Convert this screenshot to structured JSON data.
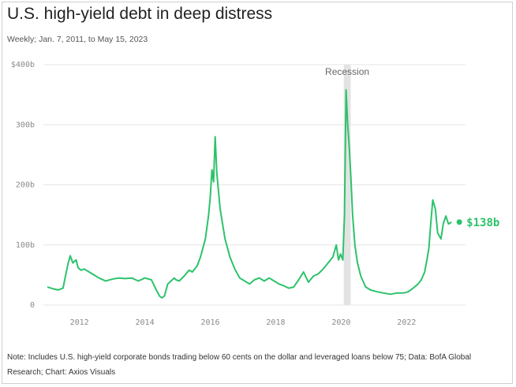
{
  "header": {
    "title": "U.S. high-yield debt in deep distress",
    "subtitle": "Weekly; Jan. 7, 2011, to May 15, 2023"
  },
  "footer": {
    "note": "Note: Includes U.S. high-yield corporate bonds trading below 60 cents on the dollar and leveraged loans below 75; Data: BofA Global Research; Chart: Axios Visuals"
  },
  "colors": {
    "line": "#2dc26b",
    "recession_band": "#e3e3e3",
    "grid": "#e6e6e6"
  },
  "chart_data": {
    "type": "line",
    "title": "U.S. high-yield debt in deep distress",
    "subtitle": "Weekly; Jan. 7, 2011, to May 15, 2023",
    "xlabel": "",
    "ylabel": "",
    "xlim": [
      2010.9,
      2023.8
    ],
    "ylim": [
      0,
      400
    ],
    "y_ticks": [
      0,
      100,
      200,
      300,
      400
    ],
    "y_tick_labels": [
      "0",
      "100b",
      "200b",
      "300b",
      "$400b"
    ],
    "x_ticks": [
      2012,
      2014,
      2016,
      2018,
      2020,
      2022
    ],
    "x_tick_labels": [
      "2012",
      "2014",
      "2016",
      "2018",
      "2020",
      "2022"
    ],
    "grid": "horizontal",
    "recession": {
      "label": "Recession",
      "start": 2020.08,
      "end": 2020.29
    },
    "end_label": "$138b",
    "series": [
      {
        "units": "billions of dollars",
        "x": [
          2011.02,
          2011.2,
          2011.35,
          2011.5,
          2011.65,
          2011.72,
          2011.8,
          2011.9,
          2011.96,
          2012.05,
          2012.15,
          2012.3,
          2012.45,
          2012.6,
          2012.8,
          2013.0,
          2013.2,
          2013.4,
          2013.6,
          2013.8,
          2014.0,
          2014.2,
          2014.35,
          2014.45,
          2014.52,
          2014.6,
          2014.7,
          2014.8,
          2014.9,
          2014.95,
          2015.05,
          2015.2,
          2015.35,
          2015.45,
          2015.6,
          2015.7,
          2015.85,
          2015.95,
          2016.0,
          2016.05,
          2016.1,
          2016.15,
          2016.2,
          2016.3,
          2016.45,
          2016.6,
          2016.75,
          2016.9,
          2017.05,
          2017.2,
          2017.35,
          2017.5,
          2017.65,
          2017.8,
          2017.95,
          2018.1,
          2018.25,
          2018.4,
          2018.55,
          2018.7,
          2018.85,
          2019.0,
          2019.15,
          2019.3,
          2019.45,
          2019.6,
          2019.75,
          2019.85,
          2019.92,
          2019.98,
          2020.05,
          2020.1,
          2020.15,
          2020.2,
          2020.25,
          2020.3,
          2020.35,
          2020.42,
          2020.5,
          2020.6,
          2020.75,
          2020.9,
          2021.1,
          2021.3,
          2021.5,
          2021.7,
          2021.9,
          2022.05,
          2022.2,
          2022.35,
          2022.45,
          2022.55,
          2022.62,
          2022.68,
          2022.73,
          2022.8,
          2022.88,
          2022.95,
          2023.05,
          2023.12,
          2023.2,
          2023.28,
          2023.37
        ],
        "y": [
          30,
          27,
          25,
          28,
          68,
          82,
          70,
          75,
          62,
          58,
          60,
          55,
          50,
          45,
          40,
          43,
          45,
          44,
          45,
          40,
          45,
          42,
          25,
          15,
          12,
          15,
          35,
          40,
          45,
          42,
          40,
          48,
          58,
          55,
          65,
          80,
          110,
          150,
          180,
          225,
          205,
          280,
          220,
          160,
          110,
          80,
          60,
          45,
          40,
          35,
          42,
          45,
          40,
          45,
          40,
          35,
          32,
          28,
          30,
          42,
          55,
          38,
          48,
          52,
          60,
          70,
          80,
          100,
          75,
          85,
          75,
          150,
          358,
          300,
          260,
          210,
          150,
          100,
          70,
          48,
          30,
          25,
          22,
          20,
          18,
          20,
          20,
          22,
          28,
          35,
          42,
          55,
          75,
          95,
          130,
          175,
          160,
          120,
          110,
          135,
          148,
          135,
          138
        ]
      }
    ]
  }
}
